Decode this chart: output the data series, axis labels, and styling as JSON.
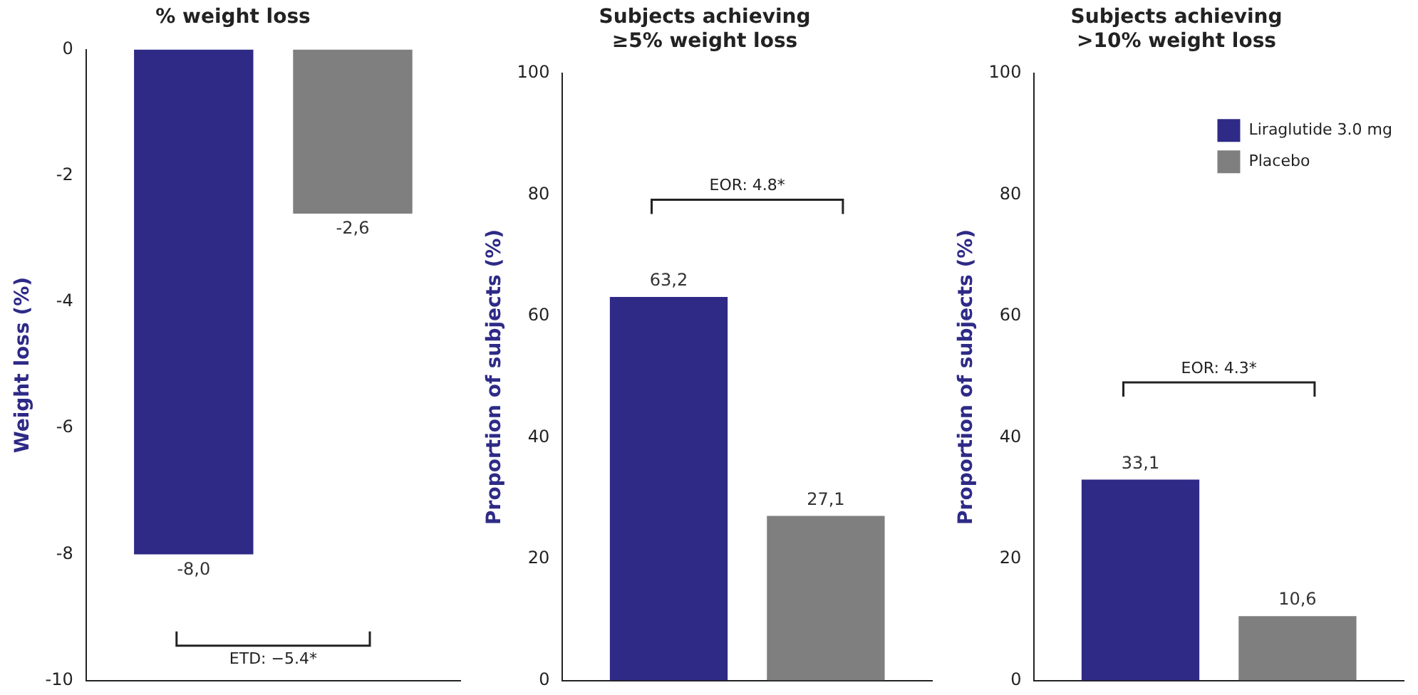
{
  "chart_data": [
    {
      "type": "bar",
      "title": "% weight loss",
      "ylabel": "Weight loss (%)",
      "categories": [
        null
      ],
      "series": [
        {
          "color": "#2e2a86",
          "values": [
            -8.0
          ],
          "value_labels": [
            "-8,0"
          ]
        },
        {
          "color": "#7f7f7f",
          "values": [
            -2.6
          ],
          "value_labels": [
            "-2,6"
          ]
        }
      ],
      "ylim": [
        -10,
        0
      ],
      "yticks": [
        -10,
        -8,
        -6,
        -4,
        -2,
        0
      ],
      "tick_labels": "y",
      "grid": false,
      "legend": false,
      "annotations": [
        "ETD: −5.4*"
      ]
    },
    {
      "type": "bar",
      "title": "Subjects achieving\n≥5% weight loss",
      "ylabel": "Proportion of subjects (%)",
      "categories": [
        null
      ],
      "series": [
        {
          "color": "#2e2a86",
          "values": [
            63.2
          ],
          "value_labels": [
            "63,2"
          ]
        },
        {
          "color": "#7f7f7f",
          "values": [
            27.1
          ],
          "value_labels": [
            "27,1"
          ]
        }
      ],
      "ylim": [
        0,
        100
      ],
      "yticks": [
        0,
        20,
        40,
        60,
        80,
        100
      ],
      "tick_labels": "y",
      "grid": false,
      "legend": false,
      "annotations": [
        "EOR: 4.8*"
      ]
    },
    {
      "type": "bar",
      "title": "Subjects achieving\n>10% weight loss",
      "ylabel": "Proportion of subjects (%)",
      "categories": [
        null
      ],
      "series": [
        {
          "name": "Liraglutide 3.0 mg",
          "color": "#2e2a86",
          "values": [
            33.1
          ],
          "value_labels": [
            "33,1"
          ]
        },
        {
          "name": "Placebo",
          "color": "#7f7f7f",
          "values": [
            10.6
          ],
          "value_labels": [
            "10,6"
          ]
        }
      ],
      "ylim": [
        0,
        100
      ],
      "yticks": [
        0,
        20,
        40,
        60,
        80,
        100
      ],
      "tick_labels": "y",
      "grid": false,
      "legend": "top right",
      "annotations": [
        "EOR: 4.3*"
      ]
    }
  ]
}
